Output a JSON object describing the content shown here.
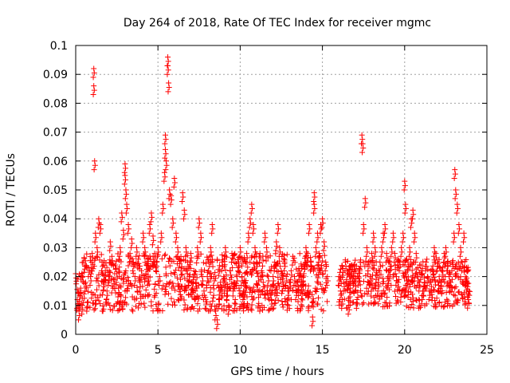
{
  "chart_data": {
    "type": "scatter",
    "title": "Day 264 of 2018, Rate Of TEC Index for receiver mgmc",
    "xlabel": "GPS time / hours",
    "ylabel": "ROTI / TECUs",
    "xlim": [
      0,
      25
    ],
    "ylim": [
      0,
      0.1
    ],
    "x_ticks": [
      0,
      5,
      10,
      15,
      20,
      25
    ],
    "x_tick_labels": [
      "0",
      "5",
      "10",
      "15",
      "20",
      "25"
    ],
    "y_ticks": [
      0,
      0.01,
      0.02,
      0.03,
      0.04,
      0.05,
      0.06,
      0.07,
      0.08,
      0.09,
      0.1
    ],
    "y_tick_labels": [
      "0",
      "0.01",
      "0.02",
      "0.03",
      "0.04",
      "0.05",
      "0.06",
      "0.07",
      "0.08",
      "0.09",
      "0.1"
    ],
    "grid": true,
    "marker": "+",
    "color": "#ff0000",
    "series": [
      {
        "name": "ROTI",
        "points": [
          [
            0.0,
            0.021
          ],
          [
            0.1,
            0.012
          ],
          [
            0.2,
            0.008
          ],
          [
            0.3,
            0.016
          ],
          [
            0.4,
            0.01
          ],
          [
            0.5,
            0.014
          ],
          [
            0.6,
            0.018
          ],
          [
            0.7,
            0.011
          ],
          [
            0.8,
            0.023
          ],
          [
            0.9,
            0.02
          ],
          [
            1.0,
            0.028
          ],
          [
            1.1,
            0.092
          ],
          [
            1.1,
            0.086
          ],
          [
            1.15,
            0.06
          ],
          [
            1.2,
            0.035
          ],
          [
            1.3,
            0.03
          ],
          [
            1.4,
            0.04
          ],
          [
            1.5,
            0.038
          ],
          [
            1.6,
            0.025
          ],
          [
            1.7,
            0.018
          ],
          [
            1.8,
            0.022
          ],
          [
            1.9,
            0.015
          ],
          [
            2.0,
            0.02
          ],
          [
            2.1,
            0.032
          ],
          [
            2.2,
            0.027
          ],
          [
            2.3,
            0.019
          ],
          [
            2.4,
            0.024
          ],
          [
            2.5,
            0.021
          ],
          [
            2.6,
            0.016
          ],
          [
            2.7,
            0.03
          ],
          [
            2.8,
            0.042
          ],
          [
            2.9,
            0.036
          ],
          [
            3.0,
            0.059
          ],
          [
            3.0,
            0.055
          ],
          [
            3.05,
            0.05
          ],
          [
            3.1,
            0.045
          ],
          [
            3.2,
            0.038
          ],
          [
            3.3,
            0.028
          ],
          [
            3.4,
            0.033
          ],
          [
            3.5,
            0.025
          ],
          [
            3.6,
            0.02
          ],
          [
            3.7,
            0.03
          ],
          [
            3.8,
            0.026
          ],
          [
            3.9,
            0.018
          ],
          [
            4.0,
            0.022
          ],
          [
            4.1,
            0.035
          ],
          [
            4.2,
            0.03
          ],
          [
            4.3,
            0.024
          ],
          [
            4.4,
            0.02
          ],
          [
            4.5,
            0.038
          ],
          [
            4.6,
            0.042
          ],
          [
            4.7,
            0.034
          ],
          [
            4.8,
            0.028
          ],
          [
            4.9,
            0.025
          ],
          [
            5.0,
            0.03
          ],
          [
            5.1,
            0.02
          ],
          [
            5.2,
            0.035
          ],
          [
            5.3,
            0.045
          ],
          [
            5.4,
            0.056
          ],
          [
            5.45,
            0.069
          ],
          [
            5.45,
            0.064
          ],
          [
            5.5,
            0.06
          ],
          [
            5.6,
            0.096
          ],
          [
            5.6,
            0.093
          ],
          [
            5.65,
            0.087
          ],
          [
            5.7,
            0.05
          ],
          [
            5.8,
            0.048
          ],
          [
            5.9,
            0.04
          ],
          [
            6.0,
            0.054
          ],
          [
            6.1,
            0.035
          ],
          [
            6.2,
            0.03
          ],
          [
            6.3,
            0.026
          ],
          [
            6.4,
            0.022
          ],
          [
            6.5,
            0.049
          ],
          [
            6.6,
            0.043
          ],
          [
            6.7,
            0.03
          ],
          [
            6.8,
            0.025
          ],
          [
            6.9,
            0.02
          ],
          [
            7.0,
            0.028
          ],
          [
            7.1,
            0.016
          ],
          [
            7.2,
            0.022
          ],
          [
            7.3,
            0.018
          ],
          [
            7.4,
            0.03
          ],
          [
            7.5,
            0.04
          ],
          [
            7.6,
            0.035
          ],
          [
            7.7,
            0.02
          ],
          [
            7.8,
            0.015
          ],
          [
            7.9,
            0.012
          ],
          [
            8.0,
            0.02
          ],
          [
            8.1,
            0.025
          ],
          [
            8.2,
            0.03
          ],
          [
            8.3,
            0.038
          ],
          [
            8.4,
            0.02
          ],
          [
            8.5,
            0.008
          ],
          [
            8.6,
            0.005
          ],
          [
            8.7,
            0.012
          ],
          [
            8.8,
            0.018
          ],
          [
            8.9,
            0.025
          ],
          [
            9.0,
            0.02
          ],
          [
            9.1,
            0.03
          ],
          [
            9.2,
            0.015
          ],
          [
            9.3,
            0.01
          ],
          [
            9.4,
            0.022
          ],
          [
            9.5,
            0.028
          ],
          [
            9.6,
            0.018
          ],
          [
            9.7,
            0.012
          ],
          [
            9.8,
            0.02
          ],
          [
            9.9,
            0.025
          ],
          [
            10.0,
            0.03
          ],
          [
            10.1,
            0.02
          ],
          [
            10.2,
            0.015
          ],
          [
            10.3,
            0.018
          ],
          [
            10.4,
            0.028
          ],
          [
            10.5,
            0.035
          ],
          [
            10.6,
            0.04
          ],
          [
            10.7,
            0.045
          ],
          [
            10.8,
            0.038
          ],
          [
            10.9,
            0.03
          ],
          [
            11.0,
            0.025
          ],
          [
            11.1,
            0.02
          ],
          [
            11.2,
            0.028
          ],
          [
            11.3,
            0.022
          ],
          [
            11.4,
            0.018
          ],
          [
            11.5,
            0.035
          ],
          [
            11.6,
            0.03
          ],
          [
            11.7,
            0.02
          ],
          [
            11.8,
            0.015
          ],
          [
            11.9,
            0.012
          ],
          [
            12.0,
            0.02
          ],
          [
            12.1,
            0.025
          ],
          [
            12.2,
            0.032
          ],
          [
            12.3,
            0.038
          ],
          [
            12.4,
            0.03
          ],
          [
            12.5,
            0.022
          ],
          [
            12.6,
            0.018
          ],
          [
            12.7,
            0.025
          ],
          [
            12.8,
            0.02
          ],
          [
            12.9,
            0.015
          ],
          [
            13.0,
            0.018
          ],
          [
            13.1,
            0.022
          ],
          [
            13.2,
            0.027
          ],
          [
            13.3,
            0.02
          ],
          [
            13.4,
            0.015
          ],
          [
            13.5,
            0.018
          ],
          [
            13.6,
            0.022
          ],
          [
            13.7,
            0.02
          ],
          [
            13.8,
            0.017
          ],
          [
            13.9,
            0.024
          ],
          [
            14.0,
            0.03
          ],
          [
            14.1,
            0.028
          ],
          [
            14.2,
            0.038
          ],
          [
            14.3,
            0.025
          ],
          [
            14.4,
            0.006
          ],
          [
            14.5,
            0.049
          ],
          [
            14.5,
            0.045
          ],
          [
            14.6,
            0.03
          ],
          [
            14.7,
            0.035
          ],
          [
            14.8,
            0.028
          ],
          [
            14.9,
            0.038
          ],
          [
            15.0,
            0.04
          ],
          [
            15.1,
            0.032
          ],
          [
            15.2,
            0.025
          ],
          [
            15.3,
            0.02
          ],
          [
            16.0,
            0.02
          ],
          [
            16.1,
            0.015
          ],
          [
            16.2,
            0.012
          ],
          [
            16.3,
            0.018
          ],
          [
            16.4,
            0.025
          ],
          [
            16.5,
            0.022
          ],
          [
            16.6,
            0.01
          ],
          [
            16.7,
            0.016
          ],
          [
            16.8,
            0.024
          ],
          [
            16.9,
            0.02
          ],
          [
            17.0,
            0.018
          ],
          [
            17.1,
            0.012
          ],
          [
            17.2,
            0.02
          ],
          [
            17.3,
            0.025
          ],
          [
            17.4,
            0.069
          ],
          [
            17.45,
            0.066
          ],
          [
            17.5,
            0.038
          ],
          [
            17.6,
            0.047
          ],
          [
            17.7,
            0.03
          ],
          [
            17.8,
            0.025
          ],
          [
            17.9,
            0.02
          ],
          [
            18.0,
            0.028
          ],
          [
            18.1,
            0.035
          ],
          [
            18.2,
            0.03
          ],
          [
            18.3,
            0.022
          ],
          [
            18.4,
            0.018
          ],
          [
            18.5,
            0.025
          ],
          [
            18.6,
            0.03
          ],
          [
            18.7,
            0.035
          ],
          [
            18.8,
            0.038
          ],
          [
            18.9,
            0.028
          ],
          [
            19.0,
            0.02
          ],
          [
            19.1,
            0.025
          ],
          [
            19.2,
            0.03
          ],
          [
            19.3,
            0.035
          ],
          [
            19.4,
            0.028
          ],
          [
            19.5,
            0.02
          ],
          [
            19.6,
            0.018
          ],
          [
            19.7,
            0.025
          ],
          [
            19.8,
            0.03
          ],
          [
            19.9,
            0.035
          ],
          [
            20.0,
            0.053
          ],
          [
            20.05,
            0.045
          ],
          [
            20.1,
            0.02
          ],
          [
            20.2,
            0.025
          ],
          [
            20.3,
            0.03
          ],
          [
            20.4,
            0.04
          ],
          [
            20.5,
            0.043
          ],
          [
            20.6,
            0.035
          ],
          [
            20.7,
            0.028
          ],
          [
            20.8,
            0.02
          ],
          [
            20.9,
            0.018
          ],
          [
            21.0,
            0.022
          ],
          [
            21.1,
            0.015
          ],
          [
            21.2,
            0.018
          ],
          [
            21.3,
            0.025
          ],
          [
            21.4,
            0.02
          ],
          [
            21.5,
            0.015
          ],
          [
            21.6,
            0.018
          ],
          [
            21.7,
            0.022
          ],
          [
            21.8,
            0.03
          ],
          [
            21.9,
            0.028
          ],
          [
            22.0,
            0.025
          ],
          [
            22.1,
            0.02
          ],
          [
            22.2,
            0.018
          ],
          [
            22.3,
            0.022
          ],
          [
            22.4,
            0.028
          ],
          [
            22.5,
            0.03
          ],
          [
            22.6,
            0.025
          ],
          [
            22.7,
            0.02
          ],
          [
            22.8,
            0.018
          ],
          [
            22.9,
            0.025
          ],
          [
            23.0,
            0.035
          ],
          [
            23.05,
            0.057
          ],
          [
            23.1,
            0.05
          ],
          [
            23.2,
            0.045
          ],
          [
            23.3,
            0.038
          ],
          [
            23.4,
            0.03
          ],
          [
            23.5,
            0.025
          ],
          [
            23.6,
            0.035
          ],
          [
            23.7,
            0.02
          ],
          [
            23.8,
            0.018
          ],
          [
            23.9,
            0.015
          ]
        ],
        "dense_bands": [
          {
            "from": 0.0,
            "to": 15.3,
            "low": 0.008,
            "high": 0.028
          },
          {
            "from": 16.0,
            "to": 24.0,
            "low": 0.009,
            "high": 0.026
          }
        ]
      }
    ]
  }
}
